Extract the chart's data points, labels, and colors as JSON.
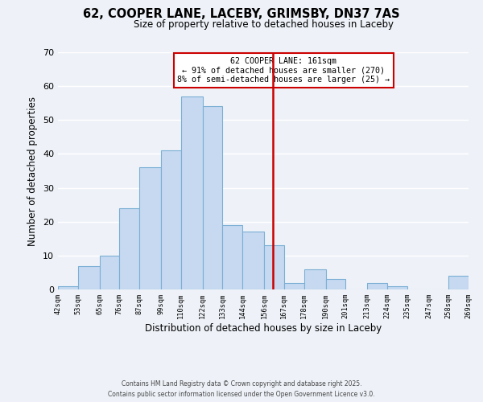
{
  "title": "62, COOPER LANE, LACEBY, GRIMSBY, DN37 7AS",
  "subtitle": "Size of property relative to detached houses in Laceby",
  "xlabel": "Distribution of detached houses by size in Laceby",
  "ylabel": "Number of detached properties",
  "footer_line1": "Contains HM Land Registry data © Crown copyright and database right 2025.",
  "footer_line2": "Contains public sector information licensed under the Open Government Licence v3.0.",
  "bin_edges": [
    42,
    53,
    65,
    76,
    87,
    99,
    110,
    122,
    133,
    144,
    156,
    167,
    178,
    190,
    201,
    213,
    224,
    235,
    247,
    258,
    269
  ],
  "bar_heights": [
    1,
    7,
    10,
    24,
    36,
    41,
    57,
    54,
    19,
    17,
    13,
    2,
    6,
    3,
    0,
    2,
    1,
    0,
    0,
    4
  ],
  "bar_color": "#c6d9f1",
  "bar_edge_color": "#7bafd4",
  "vline_x": 161,
  "vline_color": "#cc0000",
  "annotation_title": "62 COOPER LANE: 161sqm",
  "annotation_line1": "← 91% of detached houses are smaller (270)",
  "annotation_line2": "8% of semi-detached houses are larger (25) →",
  "annotation_box_color": "#ffffff",
  "annotation_box_edge": "#cc0000",
  "ylim": [
    0,
    70
  ],
  "tick_labels": [
    "42sqm",
    "53sqm",
    "65sqm",
    "76sqm",
    "87sqm",
    "99sqm",
    "110sqm",
    "122sqm",
    "133sqm",
    "144sqm",
    "156sqm",
    "167sqm",
    "178sqm",
    "190sqm",
    "201sqm",
    "213sqm",
    "224sqm",
    "235sqm",
    "247sqm",
    "258sqm",
    "269sqm"
  ],
  "background_color": "#eef2f8",
  "grid_color": "#ffffff"
}
